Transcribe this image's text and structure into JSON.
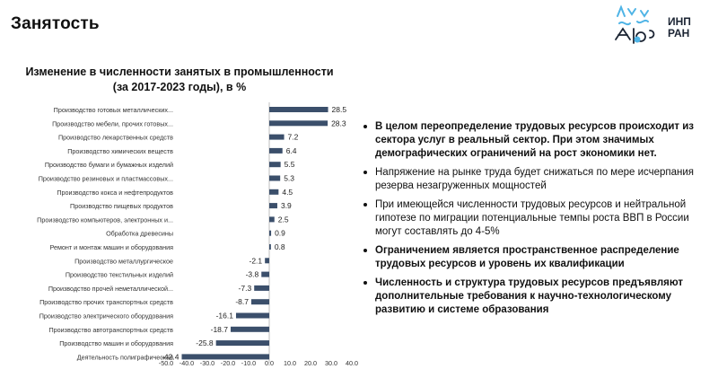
{
  "slide": {
    "title": "Занятость",
    "logo_text_line1": "ИНП",
    "logo_text_line2": "РАН"
  },
  "colors": {
    "bar": "#3b4f6b",
    "text": "#111111",
    "logo_blue": "#4fb4e6"
  },
  "chart_data": {
    "type": "bar",
    "orientation": "horizontal",
    "title_line1": "Изменение в численности занятых в промышленности",
    "title_line2": "(за 2017-2023 годы), в %",
    "categories": [
      "Производство готовых металлических...",
      "Производство мебели, прочих готовых...",
      "Производство лекарственных средств",
      "Производство химических веществ",
      "Производство бумаги и бумажных изделий",
      "Производство резиновых и пластмассовых...",
      "Производство кокса и нефтепродуктов",
      "Производство пищевых  продуктов",
      "Производство компьютеров, электронных и...",
      "Обработка древесины",
      "Ремонт и монтаж машин и оборудования",
      "Производство металлургическое",
      "Производство текстильных изделий",
      "Производство прочей неметаллической...",
      "Производство прочих транспортных средств",
      "Производство электрического оборудования",
      "Производство автотранспортных средств",
      "Производство машин и оборудования",
      "Деятельность полиграфическая"
    ],
    "values": [
      28.5,
      28.3,
      7.2,
      6.4,
      5.5,
      5.3,
      4.5,
      3.9,
      2.5,
      0.9,
      0.8,
      -2.1,
      -3.8,
      -7.3,
      -8.7,
      -16.1,
      -18.7,
      -25.8,
      -42.4
    ],
    "value_labels": [
      "28.5",
      "28.3",
      "7.2",
      "6.4",
      "5.5",
      "5.3",
      "4.5",
      "3.9",
      "2.5",
      "0.9",
      "0.8",
      "-2.1",
      "-3.8",
      "-7.3",
      "-8.7",
      "-16.1",
      "-18.7",
      "-25.8",
      "-42.4"
    ],
    "xlim": [
      -50,
      40
    ],
    "xticks": [
      "-50.0",
      "-40.0",
      "-30.0",
      "-20.0",
      "-10.0",
      "0.0",
      "10.0",
      "20.0",
      "30.0",
      "40.0"
    ],
    "grid": false,
    "legend": "none"
  },
  "bullets": [
    {
      "text": "В целом переопределение трудовых ресурсов происходит из сектора услуг в реальный сектор. При этом значимых демографических ограничений на рост экономики нет.",
      "bold": true
    },
    {
      "text": "Напряжение на рынке труда будет снижаться по мере исчерпания резерва незагруженных мощностей",
      "bold": false
    },
    {
      "text": "При имеющейся численности трудовых ресурсов и нейтральной гипотезе по миграции потенциальные темпы роста ВВП в России могут составлять до 4-5%",
      "bold": false
    },
    {
      "text": "Ограничением является пространственное распределение трудовых ресурсов и уровень их квалификации",
      "bold": true
    },
    {
      "text": "Численность и структура трудовых ресурсов предъявляют дополнительные требования к научно-технологическому развитию и системе образования",
      "bold": true
    }
  ]
}
